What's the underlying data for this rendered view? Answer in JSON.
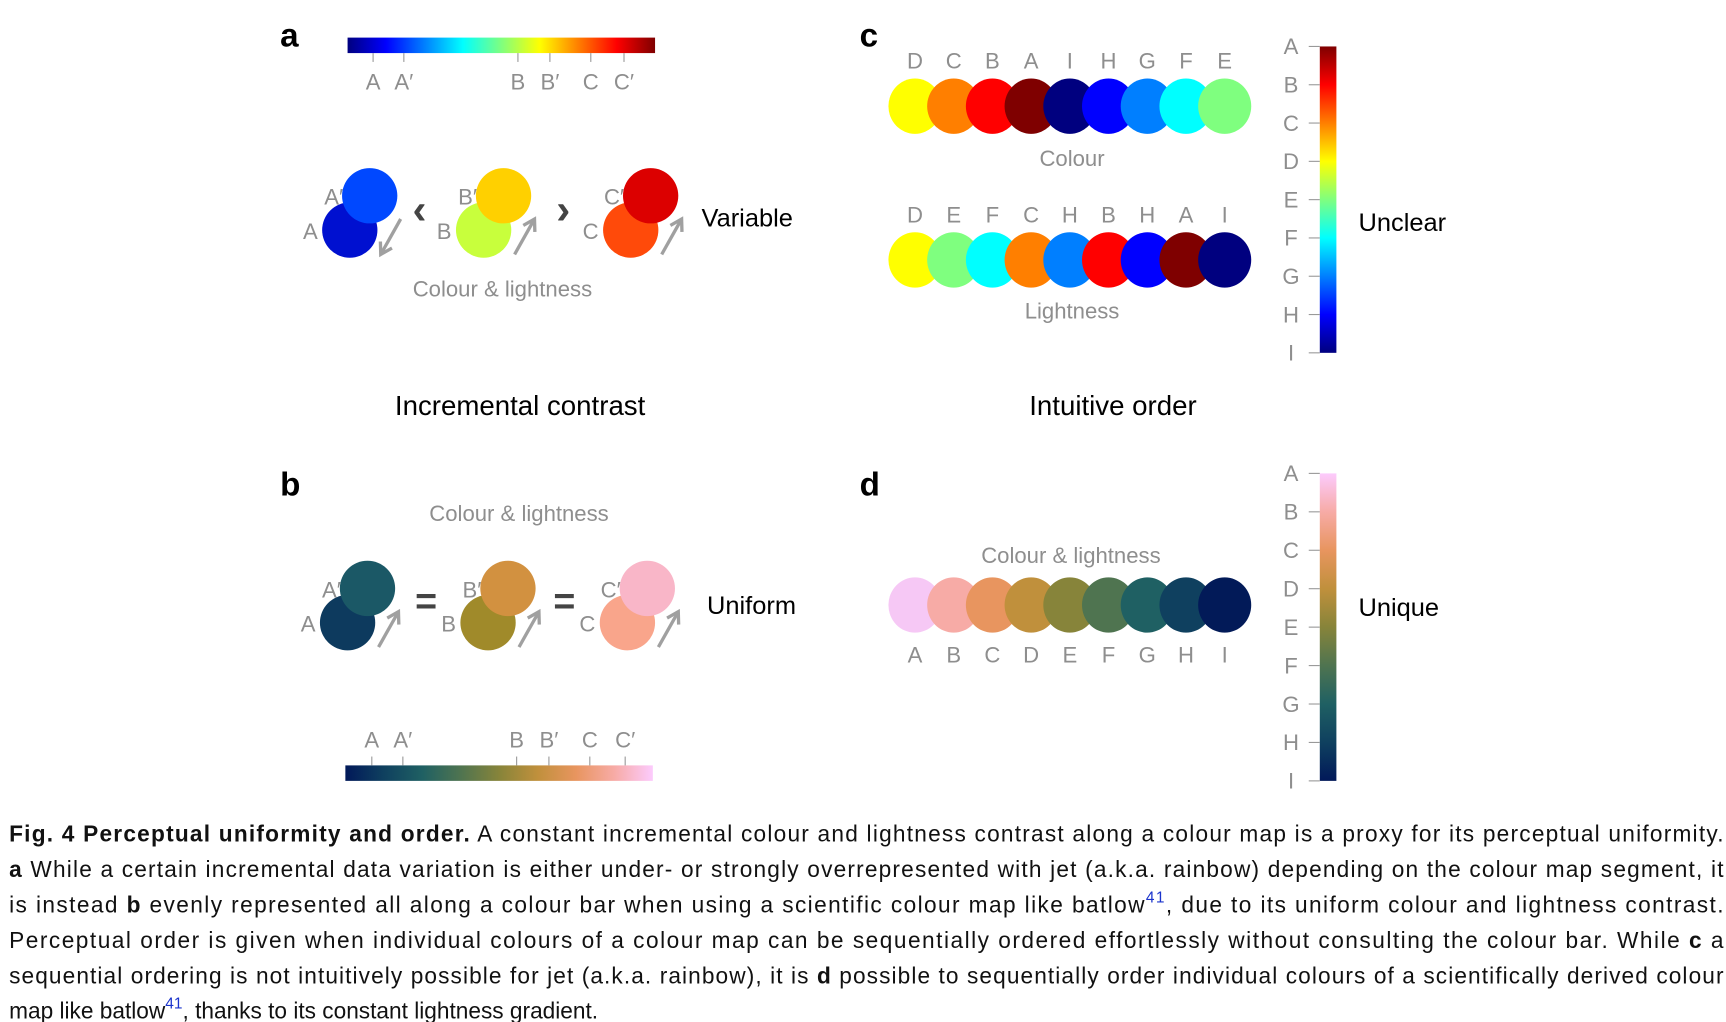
{
  "figure": {
    "jet_colormap": [
      "#00007f",
      "#0000ff",
      "#007fff",
      "#00ffff",
      "#7fff7f",
      "#ffff00",
      "#ff7f00",
      "#ff0000",
      "#7f0000"
    ],
    "batlow_colormap": [
      "#011959",
      "#0f405f",
      "#1f6063",
      "#4f7450",
      "#87843a",
      "#c0903c",
      "#e8955f",
      "#f7aba6",
      "#fccbfd"
    ],
    "section_left": "Incremental contrast",
    "section_right": "Intuitive order",
    "a": {
      "label": "a",
      "bar_ticks": [
        {
          "text": "A",
          "pos": 0.083
        },
        {
          "text": "A′",
          "pos": 0.183
        },
        {
          "text": "B",
          "pos": 0.554
        },
        {
          "text": "B′",
          "pos": 0.658
        },
        {
          "text": "C",
          "pos": 0.791
        },
        {
          "text": "C′",
          "pos": 0.899
        }
      ],
      "pairs": [
        {
          "label": "A",
          "color": "#0010d0",
          "prime_label": "A′",
          "prime_color": "#0048ff",
          "arrow": "down-left"
        },
        {
          "label": "B",
          "color": "#c8ff3c",
          "prime_label": "B′",
          "prime_color": "#ffd000",
          "arrow": "up-right"
        },
        {
          "label": "C",
          "color": "#ff4a0a",
          "prime_label": "C′",
          "prime_color": "#dc0000",
          "arrow": "up-right"
        }
      ],
      "comparisons": [
        "‹",
        "›"
      ],
      "subtitle": "Colour & lightness",
      "verdict": "Variable"
    },
    "b": {
      "label": "b",
      "subtitle": "Colour & lightness",
      "pairs": [
        {
          "label": "A",
          "color": "#0d3a5e",
          "prime_label": "A′",
          "prime_color": "#1b5866",
          "arrow": "up-right"
        },
        {
          "label": "B",
          "color": "#a08a2a",
          "prime_label": "B′",
          "prime_color": "#d29140",
          "arrow": "up-right"
        },
        {
          "label": "C",
          "color": "#f9a58b",
          "prime_label": "C′",
          "prime_color": "#f9b6c8",
          "arrow": "up-right"
        }
      ],
      "comparisons": [
        "=",
        "="
      ],
      "verdict": "Uniform",
      "bar_ticks": [
        {
          "text": "A",
          "pos": 0.086
        },
        {
          "text": "A′",
          "pos": 0.187
        },
        {
          "text": "B",
          "pos": 0.557
        },
        {
          "text": "B′",
          "pos": 0.662
        },
        {
          "text": "C",
          "pos": 0.795
        },
        {
          "text": "C′",
          "pos": 0.91
        }
      ]
    },
    "c": {
      "label": "c",
      "row_colour": {
        "caption": "Colour",
        "items": [
          {
            "text": "D",
            "color": "#ffff00"
          },
          {
            "text": "C",
            "color": "#ff7f00"
          },
          {
            "text": "B",
            "color": "#ff0000"
          },
          {
            "text": "A",
            "color": "#7f0000"
          },
          {
            "text": "I",
            "color": "#00007f"
          },
          {
            "text": "H",
            "color": "#0000ff"
          },
          {
            "text": "G",
            "color": "#007fff"
          },
          {
            "text": "F",
            "color": "#00ffff"
          },
          {
            "text": "E",
            "color": "#7fff7f"
          }
        ]
      },
      "row_lightness": {
        "caption": "Lightness",
        "items": [
          {
            "text": "D",
            "color": "#ffff00"
          },
          {
            "text": "E",
            "color": "#7fff7f"
          },
          {
            "text": "F",
            "color": "#00ffff"
          },
          {
            "text": "C",
            "color": "#ff7f00"
          },
          {
            "text": "H",
            "color": "#007fff"
          },
          {
            "text": "B",
            "color": "#ff0000"
          },
          {
            "text": "H",
            "color": "#0000ff"
          },
          {
            "text": "A",
            "color": "#7f0000"
          },
          {
            "text": "I",
            "color": "#00007f"
          }
        ]
      },
      "bar_labels": [
        "A",
        "B",
        "C",
        "D",
        "E",
        "F",
        "G",
        "H",
        "I"
      ],
      "verdict": "Unclear"
    },
    "d": {
      "label": "d",
      "subtitle": "Colour & lightness",
      "items": [
        {
          "text": "A",
          "color": "#f6c8f5"
        },
        {
          "text": "B",
          "color": "#f7aba6"
        },
        {
          "text": "C",
          "color": "#e8955f"
        },
        {
          "text": "D",
          "color": "#c0903c"
        },
        {
          "text": "E",
          "color": "#87843a"
        },
        {
          "text": "F",
          "color": "#4f7450"
        },
        {
          "text": "G",
          "color": "#1f6063"
        },
        {
          "text": "H",
          "color": "#0f405f"
        },
        {
          "text": "I",
          "color": "#021a58"
        }
      ],
      "bar_labels": [
        "A",
        "B",
        "C",
        "D",
        "E",
        "F",
        "G",
        "H",
        "I"
      ],
      "verdict": "Unique"
    }
  },
  "caption": {
    "link_color": "#1a33cc",
    "lines": [
      [
        {
          "t": "Fig. 4 Perceptual uniformity and order.",
          "s": "b"
        },
        {
          "t": " A constant incremental colour and lightness contrast along a colour map is a proxy for its perceptual uniformity."
        }
      ],
      [
        {
          "t": "a",
          "s": "b"
        },
        {
          "t": " While a certain incremental data variation is either under- or strongly overrepresented with jet (a.k.a. rainbow) depending on the colour map segment, it"
        }
      ],
      [
        {
          "t": "is instead "
        },
        {
          "t": "b",
          "s": "b"
        },
        {
          "t": " evenly represented all along a colour bar when using a scientific colour map like batlow"
        },
        {
          "t": "41",
          "s": "sup"
        },
        {
          "t": ", due to its uniform colour and lightness contrast."
        }
      ],
      [
        {
          "t": "Perceptual order is given when individual colours of a colour map can be sequentially ordered effortlessly without consulting the colour bar. While "
        },
        {
          "t": "c",
          "s": "b"
        },
        {
          "t": " a"
        }
      ],
      [
        {
          "t": "sequential ordering is not intuitively possible for jet (a.k.a. rainbow), it is "
        },
        {
          "t": "d",
          "s": "b"
        },
        {
          "t": " possible to sequentially order individual colours of a scientifically derived colour"
        }
      ],
      [
        {
          "t": "map like batlow"
        },
        {
          "t": "41",
          "s": "sup"
        },
        {
          "t": ", thanks to its constant lightness gradient."
        }
      ]
    ]
  }
}
